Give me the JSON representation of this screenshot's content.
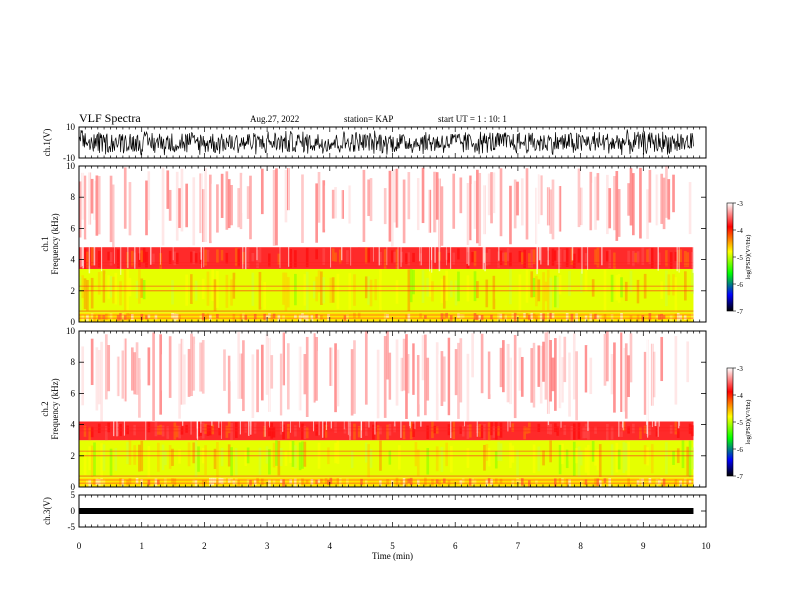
{
  "header": {
    "title": "VLF Spectra",
    "date": "Aug.27, 2022",
    "station": "station= KAP",
    "start_ut": "start UT =  1 : 10: 1"
  },
  "colorbar": {
    "label": "log(PSD)(V²/Hz)",
    "ticks": [
      "-3",
      "-4",
      "-5",
      "-6",
      "-7"
    ],
    "stops": [
      "#ffffff",
      "#ff0000",
      "#ffff00",
      "#00ff00",
      "#0000ff",
      "#000000"
    ]
  },
  "chart_data": [
    {
      "type": "line",
      "name": "ch1-waveform",
      "ylabel": "ch.1(V)",
      "ylim": [
        -10,
        10
      ],
      "yticks": [
        "10",
        "-10"
      ],
      "xlim": [
        0,
        10
      ],
      "description_values": "dense broadband noise filling roughly -8 to 8 V throughout"
    },
    {
      "type": "heatmap",
      "name": "ch1-spectrogram",
      "ylabel": "ch.1\nFrequency (kHz)",
      "ylabel_line1": "ch.1",
      "ylabel_line2": "Frequency (kHz)",
      "ylim": [
        0,
        10
      ],
      "yticks": [
        "0",
        "2",
        "4",
        "6",
        "8",
        "10"
      ],
      "xlim": [
        0,
        10
      ],
      "x": [
        0,
        9.8
      ],
      "bands": [
        {
          "from": 0,
          "to": 0.6,
          "level": "yellow/orange mixed"
        },
        {
          "from": 0.6,
          "to": 3.4,
          "level": "yellow/green"
        },
        {
          "from": 3.4,
          "to": 4.8,
          "level": "red"
        },
        {
          "from": 4.8,
          "to": 10,
          "level": "light red/white"
        }
      ]
    },
    {
      "type": "heatmap",
      "name": "ch2-spectrogram",
      "ylabel_line1": "ch.2",
      "ylabel_line2": "Frequency (kHz)",
      "ylim": [
        0,
        10
      ],
      "yticks": [
        "0",
        "2",
        "4",
        "6",
        "8",
        "10"
      ],
      "xlim": [
        0,
        10
      ],
      "x": [
        0,
        9.8
      ],
      "bands": [
        {
          "from": 0,
          "to": 0.6,
          "level": "yellow/orange mixed"
        },
        {
          "from": 0.6,
          "to": 3.0,
          "level": "yellow/green"
        },
        {
          "from": 3.0,
          "to": 4.2,
          "level": "red"
        },
        {
          "from": 4.2,
          "to": 10,
          "level": "light red/white"
        }
      ]
    },
    {
      "type": "line",
      "name": "ch3-waveform",
      "ylabel": "ch.3(V)",
      "ylim": [
        -5,
        5
      ],
      "yticks": [
        "5",
        "0",
        "-5"
      ],
      "xlim": [
        0,
        10
      ],
      "level_value": 0,
      "description_values": "thick flat trace near 0 V"
    }
  ],
  "xaxis": {
    "label": "Time (min)",
    "ticks": [
      "0",
      "1",
      "2",
      "3",
      "4",
      "5",
      "6",
      "7",
      "8",
      "9",
      "10"
    ]
  }
}
